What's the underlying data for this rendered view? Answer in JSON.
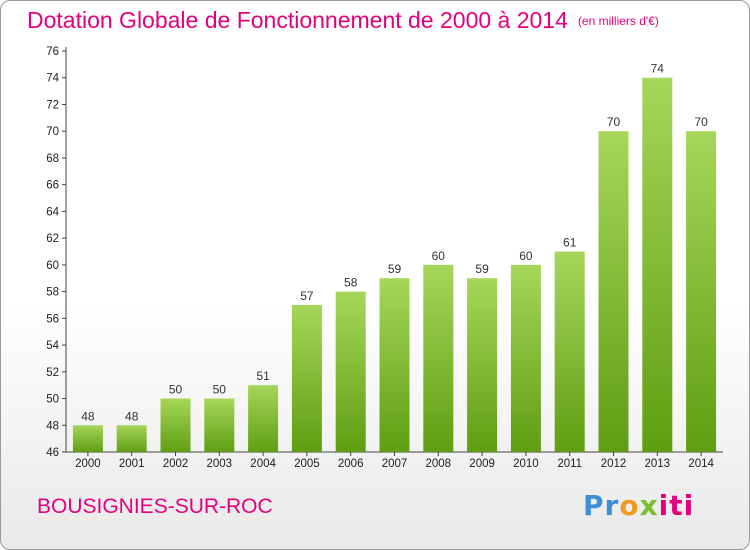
{
  "title": "Dotation Globale de Fonctionnement de 2000 à 2014",
  "unit": "(en milliers d'€)",
  "town": "BOUSIGNIES-SUR-ROC",
  "logo": {
    "part1": "Pr",
    "part2": "o",
    "part3": "x",
    "part4": "iti"
  },
  "colors": {
    "accent": "#e5007e",
    "bar_top": "#a6d65a",
    "bar_bottom": "#5f9e12"
  },
  "chart_data": {
    "type": "bar",
    "title": "Dotation Globale de Fonctionnement de 2000 à 2014",
    "subtitle": "(en milliers d'€)",
    "xlabel": "",
    "ylabel": "",
    "categories": [
      "2000",
      "2001",
      "2002",
      "2003",
      "2004",
      "2005",
      "2006",
      "2007",
      "2008",
      "2009",
      "2010",
      "2011",
      "2012",
      "2013",
      "2014"
    ],
    "values": [
      48,
      48,
      50,
      50,
      51,
      57,
      58,
      59,
      60,
      59,
      60,
      61,
      70,
      74,
      70
    ],
    "ylim": [
      46,
      76
    ],
    "yticks": [
      46,
      48,
      50,
      52,
      54,
      56,
      58,
      60,
      62,
      64,
      66,
      68,
      70,
      72,
      74,
      76
    ],
    "grid": false,
    "legend": "none"
  }
}
